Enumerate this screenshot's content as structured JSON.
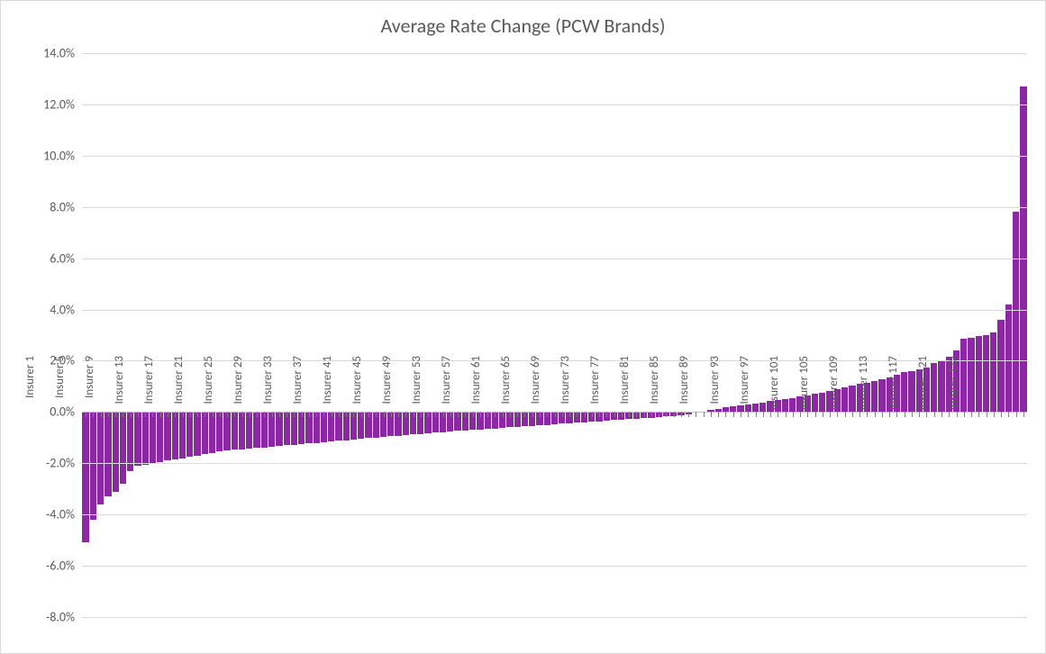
{
  "chart": {
    "type": "bar",
    "title": "Average Rate Change (PCW Brands)",
    "title_fontsize": 22,
    "title_color": "#595959",
    "background_color": "#ffffff",
    "border_color": "#d9d9d9",
    "bar_color": "#8d28a4",
    "grid_color": "#d9d9d9",
    "axis_line_color": "#bfbfbf",
    "tick_label_color": "#595959",
    "tick_fontsize": 14,
    "x_tick_fontsize": 13,
    "bar_width": 0.88,
    "y": {
      "min": -8.0,
      "max": 14.0,
      "step": 2.0,
      "format": "percent1"
    },
    "x_label_prefix": "Insurer ",
    "x_label_step": 4,
    "values": [
      -5.1,
      -4.2,
      -3.6,
      -3.3,
      -3.1,
      -2.8,
      -2.3,
      -2.1,
      -2.05,
      -2.0,
      -1.95,
      -1.9,
      -1.85,
      -1.8,
      -1.75,
      -1.7,
      -1.65,
      -1.6,
      -1.55,
      -1.5,
      -1.48,
      -1.45,
      -1.42,
      -1.4,
      -1.38,
      -1.35,
      -1.32,
      -1.3,
      -1.28,
      -1.25,
      -1.22,
      -1.2,
      -1.18,
      -1.15,
      -1.12,
      -1.1,
      -1.08,
      -1.05,
      -1.02,
      -1.0,
      -0.98,
      -0.95,
      -0.92,
      -0.9,
      -0.88,
      -0.85,
      -0.83,
      -0.8,
      -0.78,
      -0.76,
      -0.74,
      -0.72,
      -0.7,
      -0.68,
      -0.66,
      -0.64,
      -0.62,
      -0.6,
      -0.58,
      -0.56,
      -0.54,
      -0.52,
      -0.5,
      -0.48,
      -0.46,
      -0.44,
      -0.42,
      -0.4,
      -0.38,
      -0.36,
      -0.34,
      -0.32,
      -0.3,
      -0.28,
      -0.26,
      -0.24,
      -0.22,
      -0.2,
      -0.18,
      -0.15,
      -0.12,
      -0.08,
      -0.03,
      0.03,
      0.08,
      0.12,
      0.18,
      0.22,
      0.26,
      0.3,
      0.34,
      0.38,
      0.42,
      0.46,
      0.5,
      0.55,
      0.6,
      0.65,
      0.7,
      0.76,
      0.82,
      0.88,
      0.95,
      1.02,
      1.1,
      1.15,
      1.2,
      1.28,
      1.35,
      1.45,
      1.55,
      1.6,
      1.65,
      1.75,
      1.9,
      2.0,
      2.15,
      2.4,
      2.85,
      2.9,
      2.95,
      3.0,
      3.1,
      3.6,
      4.2,
      7.8,
      12.7
    ]
  }
}
